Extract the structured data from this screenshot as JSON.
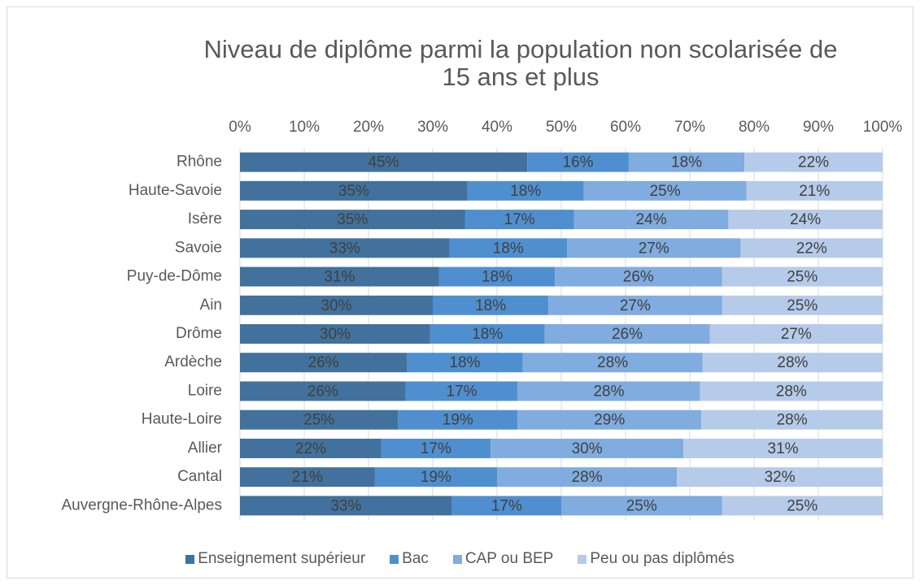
{
  "chart_data": {
    "type": "stacked_bar_horizontal",
    "title": "Niveau de diplôme parmi la population non scolarisée de 15 ans et plus",
    "categories": [
      "Rhône",
      "Haute-Savoie",
      "Isère",
      "Savoie",
      "Puy-de-Dôme",
      "Ain",
      "Drôme",
      "Ardèche",
      "Loire",
      "Haute-Loire",
      "Allier",
      "Cantal",
      "Auvergne-Rhône-Alpes"
    ],
    "xlim": [
      0,
      100
    ],
    "xticks": [
      {
        "value": 0,
        "label": "0%"
      },
      {
        "value": 10,
        "label": "10%"
      },
      {
        "value": 20,
        "label": "20%"
      },
      {
        "value": 30,
        "label": "30%"
      },
      {
        "value": 40,
        "label": "40%"
      },
      {
        "value": 50,
        "label": "50%"
      },
      {
        "value": 60,
        "label": "60%"
      },
      {
        "value": 70,
        "label": "70%"
      },
      {
        "value": 80,
        "label": "80%"
      },
      {
        "value": 90,
        "label": "90%"
      },
      {
        "value": 100,
        "label": "100%"
      }
    ],
    "grid": true,
    "legend": "bottom",
    "series": [
      {
        "name": "Enseignement supérieur",
        "color": "#41719c",
        "values": [
          44.7,
          35.4,
          35,
          32.6,
          31,
          30,
          29.6,
          26,
          25.8,
          24.6,
          22,
          21,
          33
        ],
        "value_labels": [
          "45%",
          "35%",
          "35%",
          "33%",
          "31%",
          "30%",
          "30%",
          "26%",
          "26%",
          "25%",
          "22%",
          "21%",
          "33%"
        ]
      },
      {
        "name": "Bac",
        "color": "#4f8fcf",
        "values": [
          15.8,
          18.1,
          17,
          18.3,
          18,
          18,
          17.8,
          18,
          17.4,
          18.6,
          17,
          19,
          17
        ],
        "value_labels": [
          "16%",
          "18%",
          "17%",
          "18%",
          "18%",
          "18%",
          "18%",
          "18%",
          "17%",
          "19%",
          "17%",
          "19%",
          "17%"
        ]
      },
      {
        "name": "CAP ou BEP",
        "color": "#80acdf",
        "values": [
          18.0,
          25.3,
          24,
          27.0,
          26,
          27,
          25.7,
          28,
          28.4,
          28.6,
          30,
          28,
          25
        ],
        "value_labels": [
          "18%",
          "25%",
          "24%",
          "27%",
          "26%",
          "27%",
          "26%",
          "28%",
          "28%",
          "29%",
          "30%",
          "28%",
          "25%"
        ]
      },
      {
        "name": "Peu ou pas diplômés",
        "color": "#b6cbe9",
        "values": [
          21.5,
          21.2,
          24,
          22.1,
          25,
          25,
          26.9,
          28,
          28.4,
          28.2,
          31,
          32,
          25
        ],
        "value_labels": [
          "22%",
          "21%",
          "24%",
          "22%",
          "25%",
          "25%",
          "27%",
          "28%",
          "28%",
          "28%",
          "31%",
          "32%",
          "25%"
        ]
      }
    ]
  }
}
